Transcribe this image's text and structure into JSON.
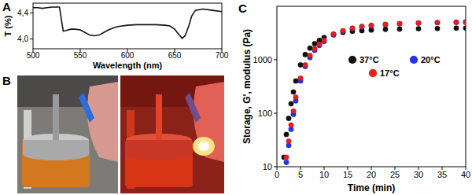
{
  "chart_data": [
    {
      "type": "line",
      "title": "A",
      "x_label": "Wavelength (nm)",
      "y_label": "T (%)",
      "x": [
        500,
        505,
        510,
        515,
        520,
        525,
        528,
        530,
        532,
        535,
        540,
        545,
        550,
        555,
        560,
        565,
        570,
        575,
        580,
        585,
        590,
        600,
        610,
        620,
        630,
        640,
        645,
        650,
        655,
        658,
        661,
        665,
        668,
        672,
        680,
        690,
        700
      ],
      "values": [
        4.48,
        4.48,
        4.47,
        4.48,
        4.49,
        4.49,
        4.49,
        4.3,
        4.12,
        4.13,
        4.15,
        4.15,
        4.14,
        4.1,
        4.06,
        4.05,
        4.06,
        4.1,
        4.14,
        4.17,
        4.19,
        4.21,
        4.22,
        4.22,
        4.22,
        4.21,
        4.2,
        4.15,
        4.06,
        4.01,
        4.05,
        4.2,
        4.35,
        4.44,
        4.46,
        4.44,
        4.42
      ],
      "color": "#111111",
      "xlim": [
        500,
        700
      ],
      "xticks": [
        500,
        550,
        600,
        650,
        700
      ],
      "ylim": [
        3.85,
        4.55
      ],
      "yticks": [
        {
          "value": 4.0,
          "label": "4,0"
        },
        {
          "value": 4.4,
          "label": "4,4"
        }
      ]
    },
    {
      "type": "scatter",
      "title": "C",
      "x_label": "Time (min)",
      "y_label": "Storage, G', modulus (Pa)",
      "x": [
        1.5,
        2,
        2.5,
        3,
        3.5,
        4,
        5,
        6,
        7,
        8,
        9,
        10,
        12,
        14,
        16,
        18,
        20,
        23,
        26,
        30,
        34,
        38,
        40
      ],
      "series": [
        {
          "name": "37°C",
          "color": "#111111",
          "values": [
            15,
            40,
            80,
            150,
            250,
            400,
            800,
            1250,
            1650,
            2000,
            2300,
            2600,
            3000,
            3250,
            3400,
            3500,
            3600,
            3700,
            3750,
            3800,
            3850,
            3900,
            3900
          ]
        },
        {
          "name": "20°C",
          "color": "#2233ee",
          "values": [
            null,
            12,
            25,
            50,
            95,
            170,
            400,
            750,
            1100,
            1500,
            1850,
            2200,
            2900,
            3400,
            3800,
            4100,
            4300,
            4550,
            4700,
            4850,
            4950,
            5050,
            5100
          ]
        },
        {
          "name": "17°C",
          "color": "#ee1c1c",
          "values": [
            null,
            15,
            30,
            60,
            110,
            200,
            450,
            800,
            1200,
            1600,
            1950,
            2300,
            3000,
            3500,
            3900,
            4200,
            4400,
            4600,
            4750,
            4850,
            4950,
            5000,
            5000
          ]
        }
      ],
      "xlim": [
        0,
        40
      ],
      "xticks": [
        0,
        5,
        10,
        15,
        20,
        25,
        30,
        35,
        40
      ],
      "ylim": [
        10,
        10000
      ],
      "yticks": [
        10,
        100,
        1000
      ],
      "log": "y",
      "legend": "right",
      "marker": "circle"
    }
  ],
  "photo_panel": {
    "label": "B"
  }
}
